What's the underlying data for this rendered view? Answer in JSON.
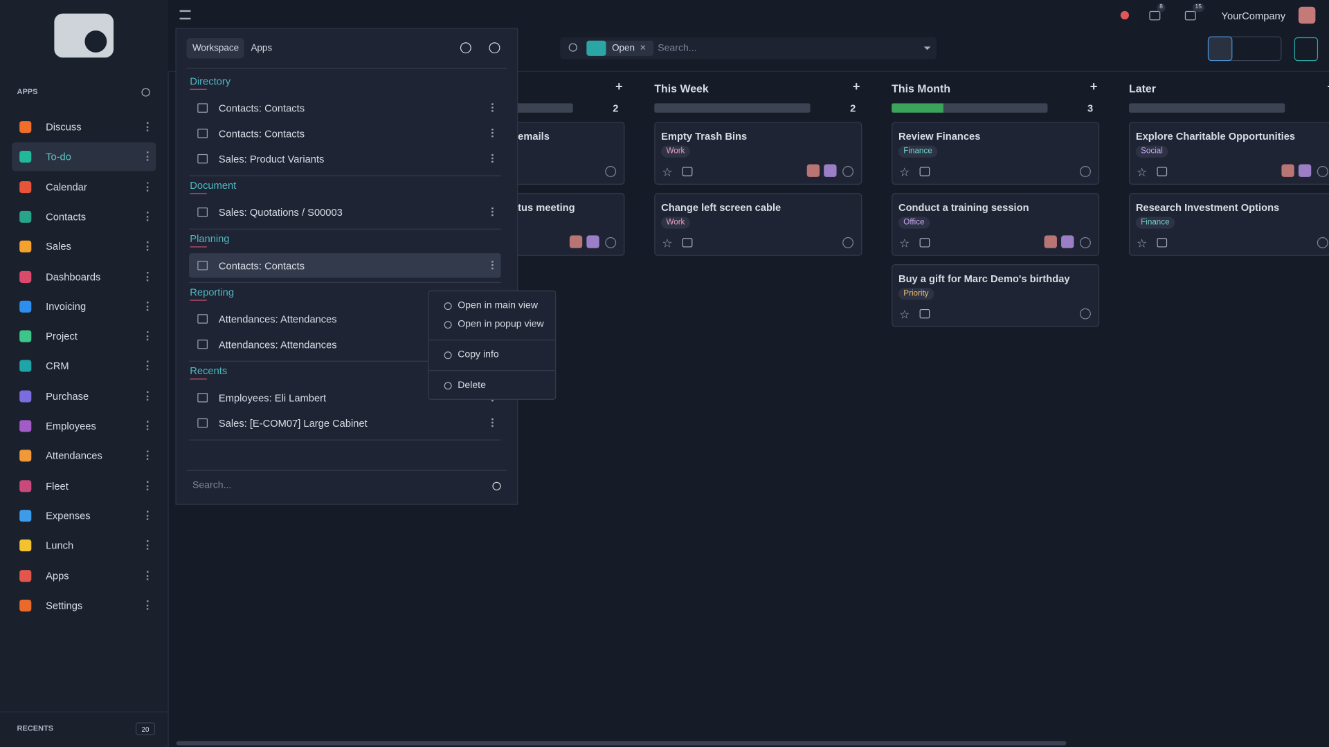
{
  "sidebar": {
    "heading": "APPS",
    "apps": [
      {
        "name": "Discuss",
        "color": "#f06d2a"
      },
      {
        "name": "To-do",
        "color": "#21b799"
      },
      {
        "name": "Calendar",
        "color": "#e8543a"
      },
      {
        "name": "Contacts",
        "color": "#28a48b"
      },
      {
        "name": "Sales",
        "color": "#f4a22d"
      },
      {
        "name": "Dashboards",
        "color": "#d94a6b"
      },
      {
        "name": "Invoicing",
        "color": "#2d8ef0"
      },
      {
        "name": "Project",
        "color": "#3ec58c"
      },
      {
        "name": "CRM",
        "color": "#1fa4a8"
      },
      {
        "name": "Purchase",
        "color": "#7b6ce0"
      },
      {
        "name": "Employees",
        "color": "#a35cc7"
      },
      {
        "name": "Attendances",
        "color": "#f0983a"
      },
      {
        "name": "Fleet",
        "color": "#c74a7b"
      },
      {
        "name": "Expenses",
        "color": "#3d9be9"
      },
      {
        "name": "Lunch",
        "color": "#f2c230"
      },
      {
        "name": "Apps",
        "color": "#e2574c"
      },
      {
        "name": "Settings",
        "color": "#ea6a2b"
      }
    ],
    "active": "To-do",
    "recents_label": "RECENTS",
    "recents_count": 20
  },
  "topbar": {
    "messages_count": 8,
    "activities_count": 15,
    "company": "YourCompany"
  },
  "search": {
    "filter": "Open",
    "placeholder": "Search..."
  },
  "panel": {
    "tabs": [
      "Workspace",
      "Apps"
    ],
    "sections": [
      {
        "title": "Directory",
        "items": [
          "Contacts: Contacts",
          "Contacts: Contacts",
          "Sales: Product Variants"
        ]
      },
      {
        "title": "Document",
        "items": [
          "Sales: Quotations / S00003"
        ]
      },
      {
        "title": "Planning",
        "items": [
          "Contacts: Contacts"
        ]
      },
      {
        "title": "Reporting",
        "items": [
          "Attendances: Attendances",
          "Attendances: Attendances"
        ]
      },
      {
        "title": "Recents",
        "items": [
          "Employees: Eli Lambert",
          "Sales: [E-COM07] Large Cabinet"
        ]
      }
    ],
    "search_placeholder": "Search..."
  },
  "context_menu": {
    "items": [
      "Open in main view",
      "Open in popup view",
      "Copy info",
      "Delete"
    ]
  },
  "kanban": {
    "columns": [
      {
        "title": null,
        "count": 2,
        "done_percent": 0,
        "cards": [
          {
            "title": "emails",
            "tag": null,
            "assigned": false
          },
          {
            "title": "tus meeting",
            "tag": null,
            "assigned": true
          }
        ]
      },
      {
        "title": "This Week",
        "count": 2,
        "done_percent": 0,
        "cards": [
          {
            "title": "Empty Trash Bins",
            "tag": "Work",
            "assigned": true
          },
          {
            "title": "Change left screen cable",
            "tag": "Work",
            "assigned": false
          }
        ]
      },
      {
        "title": "This Month",
        "count": 3,
        "done_percent": 33,
        "cards": [
          {
            "title": "Review Finances",
            "tag": "Finance",
            "assigned": false
          },
          {
            "title": "Conduct a training session",
            "tag": "Office",
            "assigned": true
          },
          {
            "title": "Buy a gift for Marc Demo's birthday",
            "tag": "Priority",
            "assigned": false
          }
        ]
      },
      {
        "title": "Later",
        "count": null,
        "done_percent": 0,
        "cards": [
          {
            "title": "Explore Charitable Opportunities",
            "tag": "Social",
            "assigned": true
          },
          {
            "title": "Research Investment Options",
            "tag": "Finance",
            "assigned": false
          }
        ]
      }
    ],
    "tag_colors": {
      "Work": "#e9a0c0",
      "Finance": "#6fd3cc",
      "Social": "#c9a6f0",
      "Office": "#c9a6f0",
      "Priority": "#f0c070"
    }
  }
}
